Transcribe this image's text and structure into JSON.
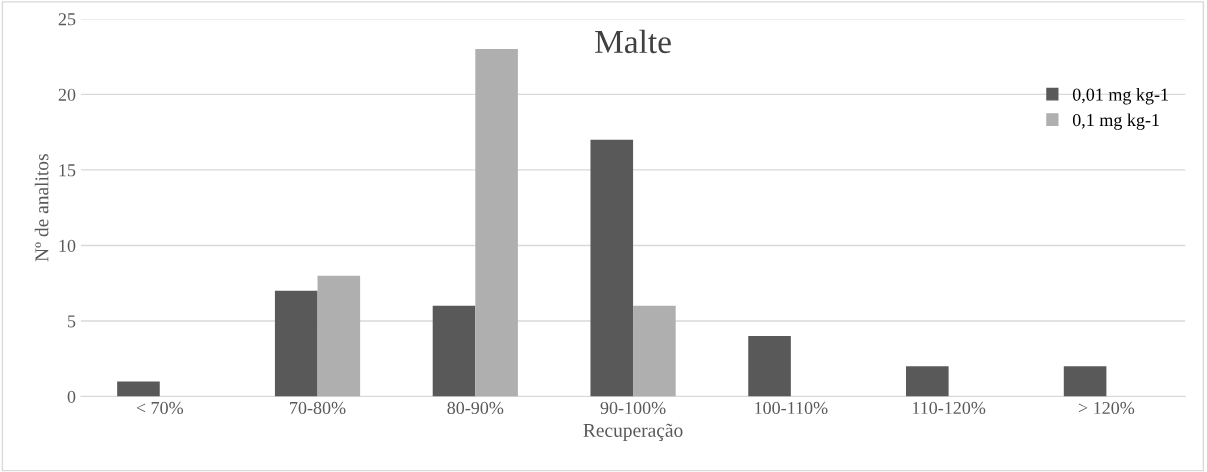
{
  "chart_data": {
    "type": "bar",
    "title": "Malte",
    "xlabel": "Recuperação",
    "ylabel": "Nº de analitos",
    "categories": [
      "< 70%",
      "70-80%",
      "80-90%",
      "90-100%",
      "100-110%",
      "110-120%",
      "> 120%"
    ],
    "series": [
      {
        "name": "0,01 mg kg-1",
        "color": "#595959",
        "values": [
          1,
          7,
          6,
          17,
          4,
          2,
          2
        ]
      },
      {
        "name": "0,1 mg kg-1",
        "color": "#afafaf",
        "values": [
          0,
          8,
          23,
          6,
          0,
          0,
          0
        ]
      }
    ],
    "ylim": [
      0,
      25
    ],
    "yticks": [
      0,
      5,
      10,
      15,
      20,
      25
    ],
    "grid": "y",
    "legend": "top right"
  }
}
